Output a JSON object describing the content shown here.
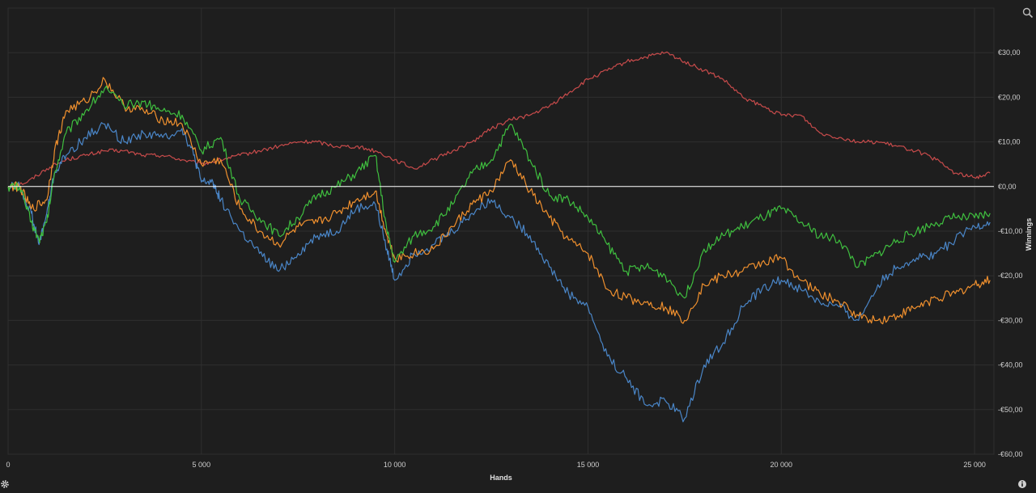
{
  "chart_data": {
    "type": "line",
    "xlabel": "Hands",
    "ylabel": "Winnings",
    "xlim": [
      0,
      25500
    ],
    "ylim": [
      -60,
      40
    ],
    "x_ticks": [
      0,
      5000,
      10000,
      15000,
      20000,
      25000
    ],
    "x_tick_labels": [
      "0",
      "5 000",
      "10 000",
      "15 000",
      "20 000",
      "25 000"
    ],
    "y_ticks": [
      30,
      20,
      10,
      0,
      -10,
      -20,
      -30,
      -40,
      -50,
      -60
    ],
    "y_tick_labels": [
      "€30,00",
      "€20,00",
      "€10,00",
      "€0,00",
      "-€10,00",
      "-€20,00",
      "-€30,00",
      "-€40,00",
      "-€50,00",
      "-€60,00"
    ],
    "grid": true,
    "zero_line": true,
    "series": [
      {
        "color": "#c84b4b",
        "points": [
          [
            0,
            0
          ],
          [
            500,
            1
          ],
          [
            1000,
            4
          ],
          [
            1500,
            6
          ],
          [
            2000,
            7
          ],
          [
            2500,
            8
          ],
          [
            3000,
            8
          ],
          [
            3500,
            7
          ],
          [
            4000,
            7
          ],
          [
            4500,
            6
          ],
          [
            5000,
            5
          ],
          [
            5500,
            6
          ],
          [
            6000,
            7
          ],
          [
            6500,
            8
          ],
          [
            7000,
            9
          ],
          [
            7500,
            10
          ],
          [
            8000,
            10
          ],
          [
            8500,
            9
          ],
          [
            9000,
            9
          ],
          [
            9500,
            8
          ],
          [
            10000,
            6
          ],
          [
            10500,
            4
          ],
          [
            11000,
            6
          ],
          [
            11500,
            8
          ],
          [
            12000,
            10
          ],
          [
            12500,
            13
          ],
          [
            13000,
            15
          ],
          [
            13500,
            16
          ],
          [
            14000,
            18
          ],
          [
            14500,
            21
          ],
          [
            15000,
            24
          ],
          [
            15500,
            26
          ],
          [
            16000,
            28
          ],
          [
            16500,
            29
          ],
          [
            17000,
            30
          ],
          [
            17500,
            28
          ],
          [
            18000,
            26
          ],
          [
            18500,
            24
          ],
          [
            19000,
            20
          ],
          [
            19500,
            18
          ],
          [
            20000,
            16
          ],
          [
            20500,
            16
          ],
          [
            21000,
            12
          ],
          [
            21500,
            11
          ],
          [
            22000,
            10
          ],
          [
            22500,
            10
          ],
          [
            23000,
            9
          ],
          [
            23500,
            8
          ],
          [
            24000,
            6
          ],
          [
            24500,
            3
          ],
          [
            25000,
            2
          ],
          [
            25400,
            3
          ]
        ]
      },
      {
        "color": "#4a86c8",
        "points": [
          [
            0,
            0
          ],
          [
            300,
            0
          ],
          [
            600,
            -6
          ],
          [
            800,
            -13
          ],
          [
            1000,
            -6
          ],
          [
            1200,
            3
          ],
          [
            1500,
            7
          ],
          [
            2000,
            11
          ],
          [
            2500,
            14
          ],
          [
            3000,
            10
          ],
          [
            3500,
            12
          ],
          [
            4000,
            11
          ],
          [
            4500,
            13
          ],
          [
            4800,
            7
          ],
          [
            5000,
            1
          ],
          [
            5300,
            1
          ],
          [
            5500,
            -3
          ],
          [
            6000,
            -10
          ],
          [
            6500,
            -15
          ],
          [
            7000,
            -19
          ],
          [
            7500,
            -15
          ],
          [
            8000,
            -11
          ],
          [
            8500,
            -10
          ],
          [
            9000,
            -5
          ],
          [
            9500,
            -4
          ],
          [
            9800,
            -14
          ],
          [
            10000,
            -21
          ],
          [
            10500,
            -15
          ],
          [
            11000,
            -13
          ],
          [
            11500,
            -10
          ],
          [
            12000,
            -6
          ],
          [
            12500,
            -3
          ],
          [
            13000,
            -7
          ],
          [
            13500,
            -11
          ],
          [
            14000,
            -18
          ],
          [
            14500,
            -24
          ],
          [
            15000,
            -27
          ],
          [
            15500,
            -38
          ],
          [
            16000,
            -43
          ],
          [
            16500,
            -49
          ],
          [
            17000,
            -48
          ],
          [
            17500,
            -52
          ],
          [
            18000,
            -40
          ],
          [
            18500,
            -35
          ],
          [
            19000,
            -27
          ],
          [
            19500,
            -23
          ],
          [
            20000,
            -21
          ],
          [
            20500,
            -23
          ],
          [
            21000,
            -26
          ],
          [
            21500,
            -27
          ],
          [
            22000,
            -30
          ],
          [
            22500,
            -22
          ],
          [
            23000,
            -18
          ],
          [
            23500,
            -16
          ],
          [
            24000,
            -15
          ],
          [
            24500,
            -12
          ],
          [
            25000,
            -9
          ],
          [
            25400,
            -8
          ]
        ]
      },
      {
        "color": "#f0902e",
        "points": [
          [
            0,
            0
          ],
          [
            300,
            0
          ],
          [
            600,
            -5
          ],
          [
            1000,
            -3
          ],
          [
            1200,
            8
          ],
          [
            1500,
            17
          ],
          [
            2000,
            19
          ],
          [
            2500,
            24
          ],
          [
            3000,
            18
          ],
          [
            3500,
            17
          ],
          [
            4000,
            15
          ],
          [
            4500,
            14
          ],
          [
            5000,
            5
          ],
          [
            5500,
            6
          ],
          [
            6000,
            -5
          ],
          [
            6500,
            -10
          ],
          [
            7000,
            -13
          ],
          [
            7500,
            -9
          ],
          [
            8000,
            -8
          ],
          [
            8500,
            -6
          ],
          [
            9000,
            -3
          ],
          [
            9500,
            -1
          ],
          [
            9800,
            -11
          ],
          [
            10000,
            -16
          ],
          [
            10500,
            -15
          ],
          [
            11000,
            -14
          ],
          [
            11500,
            -9
          ],
          [
            12000,
            -4
          ],
          [
            12500,
            -1
          ],
          [
            13000,
            6
          ],
          [
            13500,
            -1
          ],
          [
            14000,
            -7
          ],
          [
            14500,
            -12
          ],
          [
            15000,
            -15
          ],
          [
            15500,
            -23
          ],
          [
            16000,
            -25
          ],
          [
            16500,
            -26
          ],
          [
            17000,
            -27
          ],
          [
            17500,
            -30
          ],
          [
            18000,
            -22
          ],
          [
            18500,
            -20
          ],
          [
            19000,
            -19
          ],
          [
            19500,
            -17
          ],
          [
            20000,
            -16
          ],
          [
            20500,
            -21
          ],
          [
            21000,
            -24
          ],
          [
            21500,
            -26
          ],
          [
            22000,
            -29
          ],
          [
            22500,
            -30
          ],
          [
            23000,
            -29
          ],
          [
            23500,
            -27
          ],
          [
            24000,
            -25
          ],
          [
            24500,
            -24
          ],
          [
            25000,
            -22
          ],
          [
            25400,
            -21
          ]
        ]
      },
      {
        "color": "#3fbf3f",
        "points": [
          [
            0,
            0
          ],
          [
            300,
            0
          ],
          [
            600,
            -8
          ],
          [
            800,
            -12
          ],
          [
            1000,
            -8
          ],
          [
            1200,
            3
          ],
          [
            1500,
            12
          ],
          [
            2000,
            17
          ],
          [
            2500,
            22
          ],
          [
            3000,
            18
          ],
          [
            3500,
            19
          ],
          [
            4000,
            17
          ],
          [
            4500,
            16
          ],
          [
            5000,
            8
          ],
          [
            5500,
            11
          ],
          [
            6000,
            -3
          ],
          [
            6500,
            -7
          ],
          [
            7000,
            -11
          ],
          [
            7500,
            -7
          ],
          [
            8000,
            -2
          ],
          [
            8500,
            0
          ],
          [
            9000,
            3
          ],
          [
            9500,
            7
          ],
          [
            9800,
            -10
          ],
          [
            10000,
            -17
          ],
          [
            10500,
            -11
          ],
          [
            11000,
            -9
          ],
          [
            11500,
            -4
          ],
          [
            12000,
            3
          ],
          [
            12500,
            6
          ],
          [
            13000,
            14
          ],
          [
            13500,
            6
          ],
          [
            14000,
            -2
          ],
          [
            14500,
            -3
          ],
          [
            15000,
            -7
          ],
          [
            15500,
            -13
          ],
          [
            16000,
            -19
          ],
          [
            16500,
            -18
          ],
          [
            17000,
            -20
          ],
          [
            17500,
            -25
          ],
          [
            18000,
            -14
          ],
          [
            18500,
            -11
          ],
          [
            19000,
            -9
          ],
          [
            19500,
            -7
          ],
          [
            20000,
            -5
          ],
          [
            20500,
            -8
          ],
          [
            21000,
            -11
          ],
          [
            21500,
            -12
          ],
          [
            22000,
            -18
          ],
          [
            22500,
            -15
          ],
          [
            23000,
            -12
          ],
          [
            23500,
            -10
          ],
          [
            24000,
            -8
          ],
          [
            24500,
            -7
          ],
          [
            25000,
            -7
          ],
          [
            25400,
            -6
          ]
        ]
      }
    ]
  },
  "icons": {
    "zoom": "zoom-icon",
    "settings": "gear-icon",
    "info": "info-icon"
  }
}
